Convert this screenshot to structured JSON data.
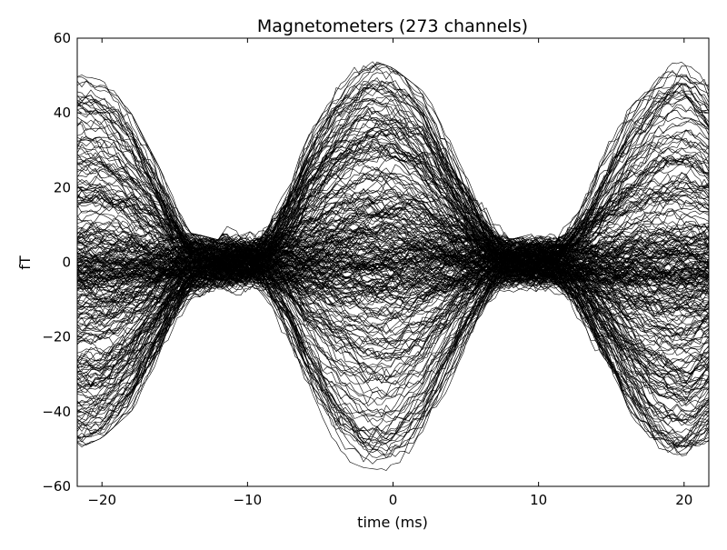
{
  "chart_data": {
    "type": "line",
    "title": "Magnetometers (273 channels)",
    "xlabel": "time (ms)",
    "ylabel": "fT",
    "xlim": [
      -21.7,
      21.7
    ],
    "ylim": [
      -60,
      60
    ],
    "xticks": [
      -20,
      -10,
      0,
      10,
      20
    ],
    "xtick_labels": [
      "−20",
      "−10",
      "0",
      "10",
      "20"
    ],
    "yticks": [
      -60,
      -40,
      -20,
      0,
      20,
      40,
      60
    ],
    "ytick_labels": [
      "−60",
      "−40",
      "−20",
      "0",
      "20",
      "40",
      "60"
    ],
    "grid": false,
    "legend": "none",
    "line_color": "#000000",
    "n_channels": 273,
    "envelope_x": [
      -21.7,
      -20,
      -18,
      -16,
      -14,
      -12,
      -10,
      -8,
      -6,
      -4,
      -2,
      0,
      2,
      4,
      6,
      8,
      10,
      12,
      14,
      16,
      18,
      20,
      21.7
    ],
    "envelope_max": [
      55,
      50,
      40,
      25,
      8,
      6,
      18,
      35,
      50,
      54,
      55,
      52,
      46,
      35,
      22,
      6,
      8,
      22,
      38,
      48,
      53,
      55,
      52
    ],
    "envelope_min": [
      -50,
      -47,
      -40,
      -28,
      -10,
      -8,
      -20,
      -38,
      -48,
      -52,
      -55,
      -56,
      -52,
      -42,
      -25,
      -8,
      -8,
      -20,
      -35,
      -45,
      -50,
      -52,
      -48
    ],
    "dense_band": [
      -8,
      8
    ]
  }
}
